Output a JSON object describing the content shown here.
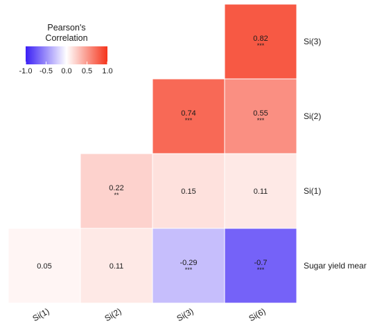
{
  "chart_data": {
    "type": "heatmap",
    "title": "",
    "xlabel": "",
    "ylabel": "",
    "columns": [
      "Si(1)",
      "Si(2)",
      "Si(3)",
      "Si(6)"
    ],
    "rows": [
      "Si(3)",
      "Si(2)",
      "Si(1)",
      "Sugar yield mear"
    ],
    "cells": [
      {
        "row": 0,
        "col": 3,
        "value": 0.82,
        "label": "0.82",
        "sig": "***"
      },
      {
        "row": 1,
        "col": 2,
        "value": 0.74,
        "label": "0.74",
        "sig": "***"
      },
      {
        "row": 1,
        "col": 3,
        "value": 0.55,
        "label": "0.55",
        "sig": "***"
      },
      {
        "row": 2,
        "col": 1,
        "value": 0.22,
        "label": "0.22",
        "sig": "**"
      },
      {
        "row": 2,
        "col": 2,
        "value": 0.15,
        "label": "0.15",
        "sig": ""
      },
      {
        "row": 2,
        "col": 3,
        "value": 0.11,
        "label": "0.11",
        "sig": ""
      },
      {
        "row": 3,
        "col": 0,
        "value": 0.05,
        "label": "0.05",
        "sig": ""
      },
      {
        "row": 3,
        "col": 1,
        "value": 0.11,
        "label": "0.11",
        "sig": ""
      },
      {
        "row": 3,
        "col": 2,
        "value": -0.29,
        "label": "-0.29",
        "sig": "***"
      },
      {
        "row": 3,
        "col": 3,
        "value": -0.7,
        "label": "-0.7",
        "sig": "***"
      }
    ],
    "legend": {
      "title": "Pearson's\nCorrelation",
      "ticks": [
        "-1.0",
        "-0.5",
        "0.0",
        "0.5",
        "1.0"
      ],
      "range": [
        -1.0,
        1.0
      ],
      "colors": {
        "low": "#3a1ff5",
        "mid": "#ffffff",
        "high": "#f5341b"
      },
      "placement": "top-left"
    }
  }
}
